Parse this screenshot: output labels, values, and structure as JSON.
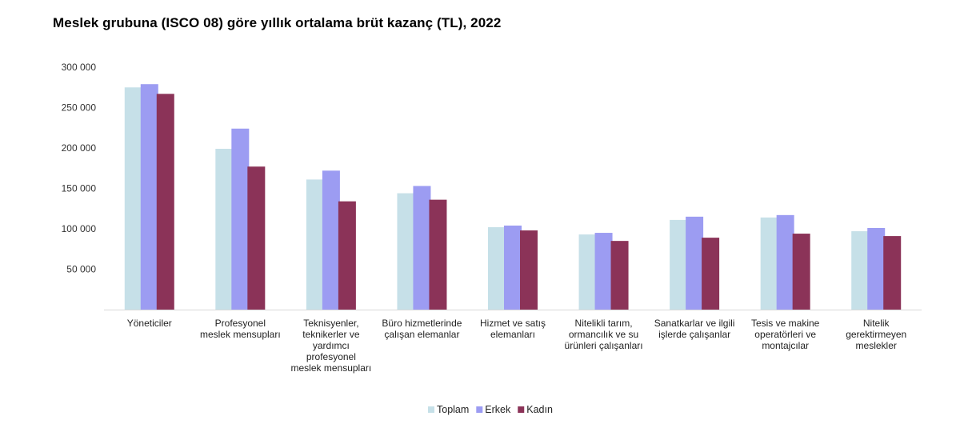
{
  "chart_data": {
    "type": "bar",
    "title": "Meslek grubuna (ISCO 08) göre yıllık ortalama brüt kazanç (TL), 2022",
    "xlabel": "",
    "ylabel": "",
    "ylim": [
      0,
      300000
    ],
    "yticks": [
      50000,
      100000,
      150000,
      200000,
      250000,
      300000
    ],
    "ytick_labels": [
      "50 000",
      "100 000",
      "150 000",
      "200 000",
      "250 000",
      "300 000"
    ],
    "grid": false,
    "legend_position": "bottom-center",
    "categories": [
      [
        "Yöneticiler"
      ],
      [
        "Profesyonel",
        "meslek mensupları"
      ],
      [
        "Teknisyenler,",
        "teknikerler ve",
        "yardımcı",
        "profesyonel",
        "meslek mensupları"
      ],
      [
        "Büro hizmetlerinde",
        "çalışan elemanlar"
      ],
      [
        "Hizmet ve satış",
        "elemanları"
      ],
      [
        "Nitelikli tarım,",
        "ormancılık ve su",
        "ürünleri çalışanları"
      ],
      [
        "Sanatkarlar ve ilgili",
        "işlerde çalışanlar"
      ],
      [
        "Tesis ve makine",
        "operatörleri ve",
        "montajcılar"
      ],
      [
        "Nitelik",
        "gerektirmeyen",
        "meslekler"
      ]
    ],
    "series": [
      {
        "name": "Toplam",
        "color": "#c6e0e8",
        "values": [
          275000,
          199000,
          161000,
          144000,
          102000,
          93000,
          111000,
          114000,
          97000
        ]
      },
      {
        "name": "Erkek",
        "color": "#9c9cf2",
        "values": [
          279000,
          224000,
          172000,
          153000,
          104000,
          95000,
          115000,
          117000,
          101000
        ]
      },
      {
        "name": "Kadın",
        "color": "#8b3358",
        "values": [
          267000,
          177000,
          134000,
          136000,
          98000,
          85000,
          89000,
          94000,
          91000
        ]
      }
    ]
  }
}
